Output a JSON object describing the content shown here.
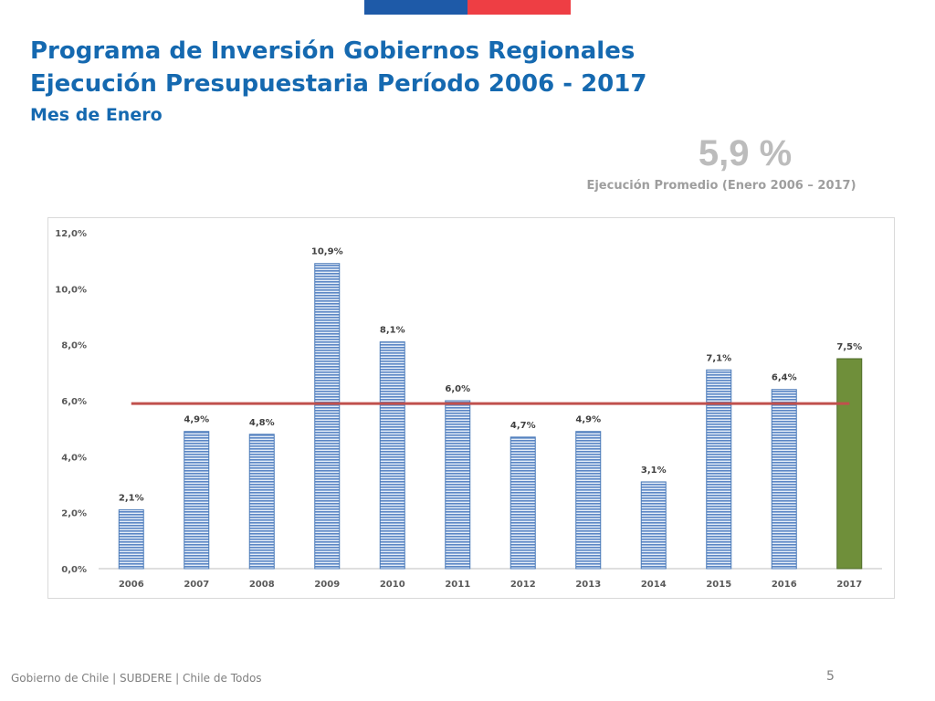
{
  "header": {
    "title_line1": "Programa de Inversión Gobiernos Regionales",
    "title_line2": "Ejecución Presupuestaria Período 2006 - 2017",
    "subtitle": "Mes de Enero"
  },
  "summary": {
    "average_value": "5,9 %",
    "average_caption": "Ejecución Promedio (Enero 2006 – 2017)"
  },
  "chart_data": {
    "type": "bar",
    "categories": [
      "2006",
      "2007",
      "2008",
      "2009",
      "2010",
      "2011",
      "2012",
      "2013",
      "2014",
      "2015",
      "2016",
      "2017"
    ],
    "values": [
      2.1,
      4.9,
      4.8,
      10.9,
      8.1,
      6.0,
      4.7,
      4.9,
      3.1,
      7.1,
      6.4,
      7.5
    ],
    "data_labels": [
      "2,1%",
      "4,9%",
      "4,8%",
      "10,9%",
      "8,1%",
      "6,0%",
      "4,7%",
      "4,9%",
      "3,1%",
      "7,1%",
      "6,4%",
      "7,5%"
    ],
    "yticks": [
      0,
      2,
      4,
      6,
      8,
      10,
      12
    ],
    "ytick_labels": [
      "0,0%",
      "2,0%",
      "4,0%",
      "6,0%",
      "8,0%",
      "10,0%",
      "12,0%"
    ],
    "ylim": [
      0,
      12
    ],
    "average_line": 5.9,
    "grid": false,
    "colors": {
      "bar_stripe_dark": "#5b86c5",
      "bar_stripe_light": "#e6eef8",
      "bar_border": "#4a7ab8",
      "highlight_bar": "#6f8f3a",
      "highlight_border": "#4e6a28",
      "average_line": "#c0504d"
    }
  },
  "footer": {
    "text": "Gobierno de Chile | SUBDERE | Chile de Todos",
    "page_number": "5"
  }
}
